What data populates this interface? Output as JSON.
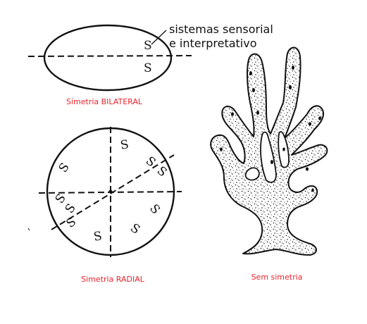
{
  "annotation": {
    "line1": "sistemas sensorial",
    "line2": "e interpretativo"
  },
  "captions": {
    "bilateral": "Simetria BILATERAL",
    "radial": "Simetria RADIAL",
    "none": "Sem simetria"
  },
  "glyph": "S",
  "colors": {
    "caption": "#e8262d",
    "ink": "#111111"
  }
}
